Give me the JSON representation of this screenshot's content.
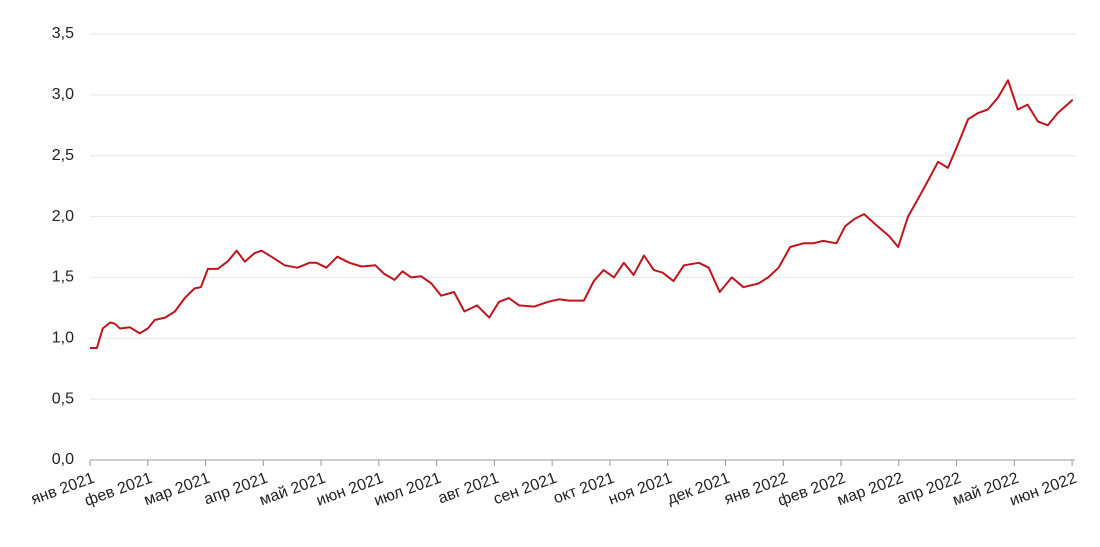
{
  "chart_data": {
    "type": "line",
    "x": [
      0,
      0.12,
      0.22,
      0.35,
      0.43,
      0.52,
      0.69,
      0.86,
      1.0,
      1.12,
      1.3,
      1.47,
      1.64,
      1.81,
      1.92,
      2.04,
      2.21,
      2.38,
      2.54,
      2.68,
      2.85,
      2.97,
      3.14,
      3.37,
      3.59,
      3.8,
      3.92,
      4.09,
      4.28,
      4.49,
      4.7,
      4.94,
      5.09,
      5.27,
      5.41,
      5.56,
      5.73,
      5.91,
      6.08,
      6.3,
      6.48,
      6.7,
      6.91,
      7.08,
      7.25,
      7.43,
      7.69,
      7.93,
      8.12,
      8.29,
      8.55,
      8.72,
      8.89,
      9.07,
      9.24,
      9.41,
      9.59,
      9.76,
      9.91,
      10.1,
      10.28,
      10.54,
      10.71,
      10.9,
      11.11,
      11.31,
      11.57,
      11.74,
      11.92,
      12.12,
      12.35,
      12.52,
      12.69,
      12.92,
      13.07,
      13.23,
      13.4,
      13.61,
      13.83,
      13.99,
      14.16,
      14.34,
      14.51,
      14.68,
      14.85,
      15.03,
      15.2,
      15.37,
      15.54,
      15.72,
      15.89,
      16.06,
      16.23,
      16.41,
      16.58,
      16.75,
      17.01
    ],
    "series": [
      {
        "color": "#c0141c",
        "values": [
          0.92,
          0.92,
          1.08,
          1.13,
          1.12,
          1.08,
          1.09,
          1.04,
          1.08,
          1.15,
          1.17,
          1.22,
          1.33,
          1.41,
          1.42,
          1.57,
          1.57,
          1.63,
          1.72,
          1.63,
          1.7,
          1.72,
          1.67,
          1.6,
          1.58,
          1.62,
          1.62,
          1.58,
          1.67,
          1.62,
          1.59,
          1.6,
          1.53,
          1.48,
          1.55,
          1.5,
          1.51,
          1.45,
          1.35,
          1.38,
          1.22,
          1.27,
          1.17,
          1.3,
          1.33,
          1.27,
          1.26,
          1.3,
          1.32,
          1.31,
          1.31,
          1.47,
          1.56,
          1.5,
          1.62,
          1.52,
          1.68,
          1.56,
          1.54,
          1.47,
          1.6,
          1.62,
          1.58,
          1.38,
          1.5,
          1.42,
          1.45,
          1.5,
          1.58,
          1.75,
          1.78,
          1.78,
          1.8,
          1.78,
          1.92,
          1.98,
          2.02,
          1.93,
          1.84,
          1.75,
          2.0,
          2.15,
          2.3,
          2.45,
          2.4,
          2.6,
          2.8,
          2.85,
          2.88,
          2.98,
          3.12,
          2.88,
          2.92,
          2.78,
          2.75,
          2.85,
          2.96
        ]
      }
    ],
    "xlim": [
      0,
      17.05
    ],
    "xticks": [
      {
        "value": 0,
        "label": "янв 2021"
      },
      {
        "value": 1,
        "label": "фев 2021"
      },
      {
        "value": 2,
        "label": "мар 2021"
      },
      {
        "value": 3,
        "label": "апр 2021"
      },
      {
        "value": 4,
        "label": "май 2021"
      },
      {
        "value": 5,
        "label": "июн 2021"
      },
      {
        "value": 6,
        "label": "июл 2021"
      },
      {
        "value": 7,
        "label": "авг 2021"
      },
      {
        "value": 8,
        "label": "сен 2021"
      },
      {
        "value": 9,
        "label": "окт 2021"
      },
      {
        "value": 10,
        "label": "ноя 2021"
      },
      {
        "value": 11,
        "label": "дек 2021"
      },
      {
        "value": 12,
        "label": "янв 2022"
      },
      {
        "value": 13,
        "label": "фев 2022"
      },
      {
        "value": 14,
        "label": "мар 2022"
      },
      {
        "value": 15,
        "label": "апр 2022"
      },
      {
        "value": 16,
        "label": "май 2022"
      },
      {
        "value": 17,
        "label": "июн 2022"
      }
    ],
    "ylim": [
      0,
      3.5
    ],
    "yticks": [
      {
        "value": 0,
        "label": "0,0"
      },
      {
        "value": 0.5,
        "label": "0,5"
      },
      {
        "value": 1,
        "label": "1,0"
      },
      {
        "value": 1.5,
        "label": "1,5"
      },
      {
        "value": 2,
        "label": "2,0"
      },
      {
        "value": 2.5,
        "label": "2,5"
      },
      {
        "value": 3,
        "label": "3,0"
      },
      {
        "value": 3.5,
        "label": "3,5"
      }
    ],
    "grid": true
  }
}
